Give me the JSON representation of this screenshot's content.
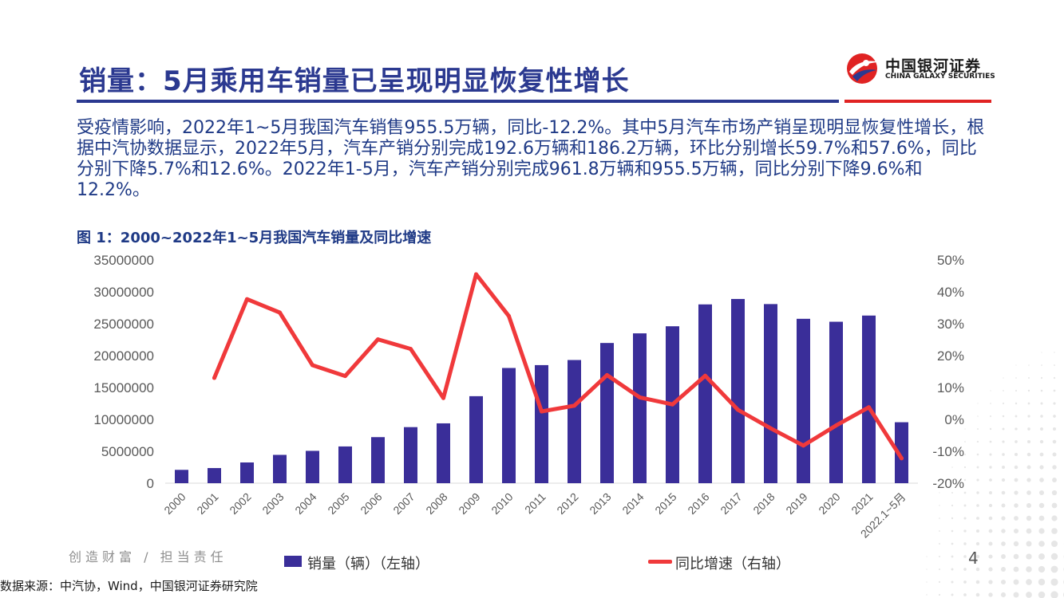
{
  "header": {
    "title": "销量：5月乘用车销量已呈现明显恢复性增长",
    "logo_cn": "中国银河证券",
    "logo_en": "CHINA GALAXY SECURITIES"
  },
  "summary": "受疫情影响，2022年1~5月我国汽车销售955.5万辆，同比-12.2%。其中5月汽车市场产销呈现明显恢复性增长，根据中汽协数据显示，2022年5月，汽车产销分别完成192.6万辆和186.2万辆，环比分别增长59.7%和57.6%，同比分别下降5.7%和12.6%。2022年1-5月，汽车产销分别完成961.8万辆和955.5万辆，同比分别下降9.6%和12.2%。",
  "figure_title": "图 1：2000~2022年1~5月我国汽车销量及同比增速",
  "colors": {
    "bar": "#3a2e99",
    "line": "#f0393b",
    "brand_blue": "#2b3990",
    "brand_red": "#e02323"
  },
  "chart_data": {
    "type": "bar",
    "categories": [
      "2000",
      "2001",
      "2002",
      "2003",
      "2004",
      "2005",
      "2006",
      "2007",
      "2008",
      "2009",
      "2010",
      "2011",
      "2012",
      "2013",
      "2014",
      "2015",
      "2016",
      "2017",
      "2018",
      "2019",
      "2020",
      "2021",
      "2022.1~5月"
    ],
    "series": [
      {
        "name": "销量（辆）（左轴）",
        "type": "bar",
        "axis": "left",
        "values": [
          2090000,
          2370000,
          3250000,
          4440000,
          5070000,
          5760000,
          7220000,
          8790000,
          9380000,
          13640000,
          18060000,
          18510000,
          19310000,
          21980000,
          23490000,
          24600000,
          28030000,
          28880000,
          28080000,
          25770000,
          25310000,
          26280000,
          9555000
        ]
      },
      {
        "name": "同比增速（右轴）",
        "type": "line",
        "axis": "right",
        "values": [
          null,
          13.0,
          37.7,
          33.5,
          17.0,
          13.6,
          25.1,
          22.1,
          6.7,
          45.5,
          32.4,
          2.5,
          4.3,
          13.9,
          6.9,
          4.7,
          13.7,
          3.0,
          -2.8,
          -8.2,
          -1.9,
          3.8,
          -12.2
        ]
      }
    ],
    "y_left": {
      "min": 0,
      "max": 35000000,
      "ticks": [
        "0",
        "5000000",
        "10000000",
        "15000000",
        "20000000",
        "25000000",
        "30000000",
        "35000000"
      ]
    },
    "y_right": {
      "min": -20,
      "max": 50,
      "ticks": [
        "-20%",
        "-10%",
        "0%",
        "10%",
        "20%",
        "30%",
        "40%",
        "50%"
      ]
    },
    "legend": [
      "销量（辆）（左轴）",
      "同比增速（右轴）"
    ],
    "legend_position": "bottom"
  },
  "footer": {
    "slogan": "创造财富 / 担当责任",
    "page": "4",
    "source": "数据来源：中汽协，Wind，中国银河证券研究院"
  }
}
